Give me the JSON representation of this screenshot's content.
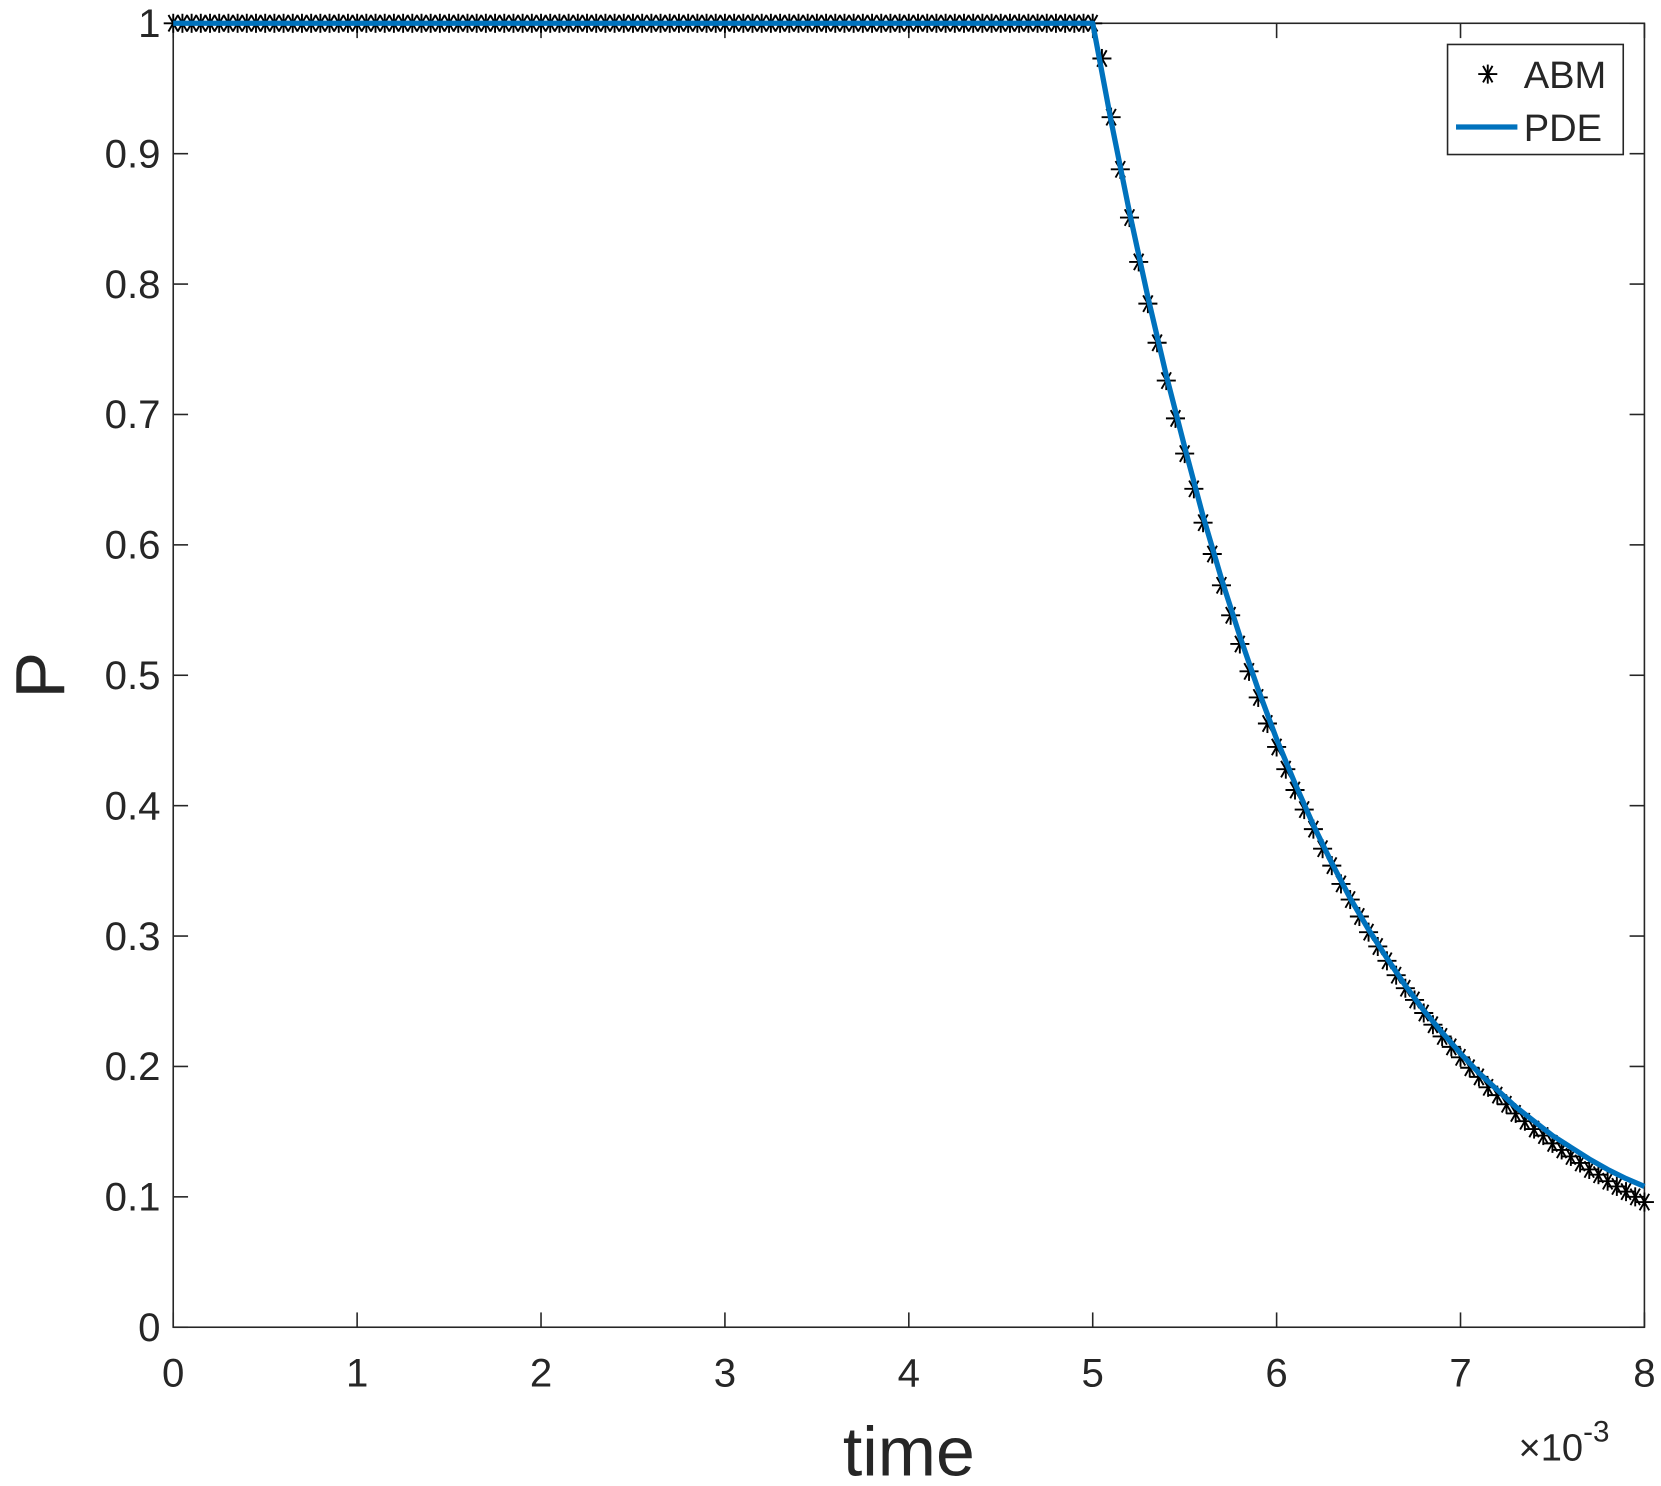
{
  "chart_data": {
    "type": "line",
    "xlabel": "time",
    "ylabel": "P",
    "x_multiplier": {
      "base": "×10",
      "exponent": "-3"
    },
    "xlim": [
      0,
      8
    ],
    "xticks": [
      0,
      1,
      2,
      3,
      4,
      5,
      6,
      7,
      8
    ],
    "ylim": [
      0,
      1
    ],
    "yticks": [
      0,
      0.1,
      0.2,
      0.3,
      0.4,
      0.5,
      0.6,
      0.7,
      0.8,
      0.9,
      1
    ],
    "legend": "top-right",
    "grid": false,
    "series": [
      {
        "name": "ABM",
        "color": "#000000",
        "style": "markers",
        "x": [
          0,
          0.05,
          0.1,
          0.15,
          0.2,
          0.25,
          0.3,
          0.35,
          0.4,
          0.45,
          0.5,
          0.55,
          0.6,
          0.65,
          0.7,
          0.75,
          0.8,
          0.85,
          0.9,
          0.95,
          1,
          1.05,
          1.1,
          1.15,
          1.2,
          1.25,
          1.3,
          1.35,
          1.4,
          1.45,
          1.5,
          1.55,
          1.6,
          1.65,
          1.7,
          1.75,
          1.8,
          1.85,
          1.9,
          1.95,
          2,
          2.05,
          2.1,
          2.15,
          2.2,
          2.25,
          2.3,
          2.35,
          2.4,
          2.45,
          2.5,
          2.55,
          2.6,
          2.65,
          2.7,
          2.75,
          2.8,
          2.85,
          2.9,
          2.95,
          3,
          3.05,
          3.1,
          3.15,
          3.2,
          3.25,
          3.3,
          3.35,
          3.4,
          3.45,
          3.5,
          3.55,
          3.6,
          3.65,
          3.7,
          3.75,
          3.8,
          3.85,
          3.9,
          3.95,
          4,
          4.05,
          4.1,
          4.15,
          4.2,
          4.25,
          4.3,
          4.35,
          4.4,
          4.45,
          4.5,
          4.55,
          4.6,
          4.65,
          4.7,
          4.75,
          4.8,
          4.85,
          4.9,
          4.95,
          5,
          5.05,
          5.1,
          5.15,
          5.2,
          5.25,
          5.3,
          5.35,
          5.4,
          5.45,
          5.5,
          5.55,
          5.6,
          5.65,
          5.7,
          5.75,
          5.8,
          5.85,
          5.9,
          5.95,
          6,
          6.05,
          6.1,
          6.15,
          6.2,
          6.25,
          6.3,
          6.35,
          6.4,
          6.45,
          6.5,
          6.55,
          6.6,
          6.65,
          6.7,
          6.75,
          6.8,
          6.85,
          6.9,
          6.95,
          7,
          7.05,
          7.1,
          7.15,
          7.2,
          7.25,
          7.3,
          7.35,
          7.4,
          7.45,
          7.5,
          7.55,
          7.6,
          7.65,
          7.7,
          7.75,
          7.8,
          7.85,
          7.9,
          7.95,
          8
        ],
        "values": [
          1,
          1,
          1,
          1,
          1,
          1,
          1,
          1,
          1,
          1,
          1,
          1,
          1,
          1,
          1,
          1,
          1,
          1,
          1,
          1,
          1,
          1,
          1,
          1,
          1,
          1,
          1,
          1,
          1,
          1,
          1,
          1,
          1,
          1,
          1,
          1,
          1,
          1,
          1,
          1,
          1,
          1,
          1,
          1,
          1,
          1,
          1,
          1,
          1,
          1,
          1,
          1,
          1,
          1,
          1,
          1,
          1,
          1,
          1,
          1,
          1,
          1,
          1,
          1,
          1,
          1,
          1,
          1,
          1,
          1,
          1,
          1,
          1,
          1,
          1,
          1,
          1,
          1,
          1,
          1,
          1,
          1,
          1,
          1,
          1,
          1,
          1,
          1,
          1,
          1,
          1,
          1,
          1,
          1,
          1,
          1,
          1,
          1,
          1,
          1,
          1,
          0.973,
          0.928,
          0.888,
          0.851,
          0.817,
          0.785,
          0.755,
          0.726,
          0.697,
          0.67,
          0.643,
          0.617,
          0.593,
          0.569,
          0.546,
          0.524,
          0.503,
          0.483,
          0.463,
          0.445,
          0.428,
          0.412,
          0.397,
          0.382,
          0.367,
          0.354,
          0.34,
          0.328,
          0.315,
          0.303,
          0.292,
          0.281,
          0.27,
          0.26,
          0.251,
          0.241,
          0.232,
          0.223,
          0.215,
          0.207,
          0.199,
          0.192,
          0.184,
          0.178,
          0.171,
          0.164,
          0.158,
          0.152,
          0.147,
          0.141,
          0.136,
          0.131,
          0.126,
          0.121,
          0.117,
          0.112,
          0.108,
          0.104,
          0.1,
          0.096
        ]
      },
      {
        "name": "PDE",
        "color": "#0072bd",
        "style": "line",
        "x": [
          0,
          5,
          5.1,
          5.2,
          5.3,
          5.4,
          5.5,
          5.6,
          5.7,
          5.8,
          5.9,
          6,
          6.1,
          6.2,
          6.3,
          6.4,
          6.5,
          6.6,
          6.7,
          6.8,
          6.9,
          7,
          7.1,
          7.2,
          7.3,
          7.4,
          7.5,
          7.6,
          7.7,
          7.8,
          7.9,
          8
        ],
        "values": [
          1,
          1,
          0.925,
          0.855,
          0.79,
          0.73,
          0.675,
          0.622,
          0.574,
          0.53,
          0.489,
          0.451,
          0.417,
          0.385,
          0.356,
          0.329,
          0.305,
          0.283,
          0.262,
          0.243,
          0.226,
          0.21,
          0.195,
          0.182,
          0.169,
          0.158,
          0.147,
          0.138,
          0.129,
          0.121,
          0.114,
          0.108
        ]
      }
    ]
  }
}
